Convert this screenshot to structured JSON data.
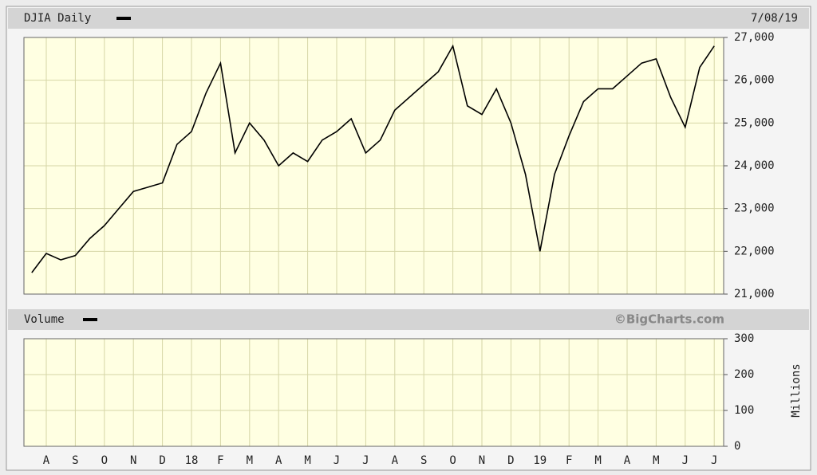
{
  "source": "©BigCharts.com",
  "chart_data": [
    {
      "type": "line",
      "date": "7/08/19",
      "categories": [
        null,
        "A",
        null,
        "S",
        null,
        "O",
        null,
        "N",
        null,
        "D",
        null,
        "18",
        null,
        "F",
        null,
        "M",
        null,
        "A",
        null,
        "M",
        null,
        "J",
        null,
        "J",
        null,
        "A",
        null,
        "S",
        null,
        "O",
        null,
        "N",
        null,
        "D",
        null,
        "19",
        null,
        "F",
        null,
        "M",
        null,
        "A",
        null,
        "M",
        null,
        "J",
        null,
        "J"
      ],
      "series": [
        {
          "name": "DJIA Daily",
          "color": "#000000",
          "values": [
            21500,
            21950,
            21800,
            21900,
            22300,
            22600,
            23000,
            23400,
            23500,
            23600,
            24500,
            24800,
            25700,
            26400,
            24300,
            25000,
            24600,
            24000,
            24300,
            24100,
            24600,
            24800,
            25100,
            24300,
            24600,
            25300,
            25600,
            25900,
            26200,
            26800,
            25400,
            25200,
            25800,
            25000,
            23800,
            22000,
            23800,
            24700,
            25500,
            25800,
            25800,
            26100,
            26400,
            26500,
            25600,
            24900,
            26300,
            26800
          ]
        }
      ],
      "ylim": [
        21000,
        27000
      ],
      "yticks": [
        {
          "value": 21000,
          "label": "21,000"
        },
        {
          "value": 22000,
          "label": "22,000"
        },
        {
          "value": 23000,
          "label": "23,000"
        },
        {
          "value": 24000,
          "label": "24,000"
        },
        {
          "value": 25000,
          "label": "25,000"
        },
        {
          "value": 26000,
          "label": "26,000"
        },
        {
          "value": 27000,
          "label": "27,000"
        }
      ],
      "grid": true
    },
    {
      "type": "bar",
      "title": "Volume",
      "y_label": "Millions",
      "ylim": [
        0,
        300
      ],
      "yticks": [
        0,
        100,
        200,
        300
      ],
      "grid": true
    }
  ]
}
